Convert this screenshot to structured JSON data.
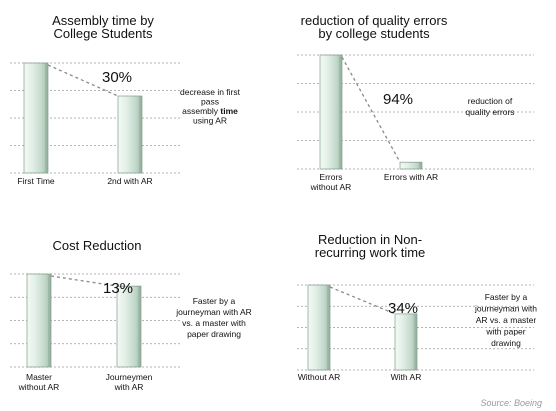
{
  "chart_data": [
    {
      "type": "bar",
      "title_lines": [
        "Assembly time by",
        "College Students"
      ],
      "categories": [
        [
          "First Time"
        ],
        [
          "2nd with AR"
        ]
      ],
      "values": [
        100,
        70
      ],
      "ylim": [
        0,
        100
      ],
      "grid": true,
      "percent_label": "30%",
      "annotation_lines": [
        [
          {
            "t": "decrease in first"
          }
        ],
        [
          {
            "t": "pass"
          }
        ],
        [
          {
            "t": "assembly "
          },
          {
            "t": "time",
            "bold": true
          }
        ],
        [
          {
            "t": "using AR"
          }
        ]
      ]
    },
    {
      "type": "bar",
      "title_lines": [
        "reduction of quality errors",
        "by college students"
      ],
      "categories": [
        [
          "Errors",
          "without AR"
        ],
        [
          "Errors with AR"
        ]
      ],
      "values": [
        100,
        6
      ],
      "ylim": [
        0,
        100
      ],
      "grid": true,
      "percent_label": "94%",
      "annotation_lines": [
        [
          {
            "t": "reduction of"
          }
        ],
        [
          {
            "t": "quality errors"
          }
        ]
      ]
    },
    {
      "type": "bar",
      "title_lines": [
        "Cost Reduction"
      ],
      "categories": [
        [
          "Master",
          "without AR"
        ],
        [
          "Journeymen",
          "with AR"
        ]
      ],
      "values": [
        100,
        87
      ],
      "ylim": [
        0,
        100
      ],
      "grid": true,
      "percent_label": "13%",
      "annotation_lines": [
        [
          {
            "t": "Faster by a"
          }
        ],
        [
          {
            "t": "journeyman with AR"
          }
        ],
        [
          {
            "t": "vs. a master with"
          }
        ],
        [
          {
            "t": "paper drawing"
          }
        ]
      ]
    },
    {
      "type": "bar",
      "title_lines": [
        "Reduction in Non-",
        "recurring work time"
      ],
      "categories": [
        [
          "Without AR"
        ],
        [
          "With AR"
        ]
      ],
      "values": [
        100,
        66
      ],
      "ylim": [
        0,
        100
      ],
      "grid": true,
      "percent_label": "34%",
      "annotation_lines": [
        [
          {
            "t": "Faster by a"
          }
        ],
        [
          {
            "t": "journeyman with"
          }
        ],
        [
          {
            "t": "AR vs. a master"
          }
        ],
        [
          {
            "t": "with paper"
          }
        ],
        [
          {
            "t": "drawing"
          }
        ]
      ]
    }
  ],
  "source": "Source: Boeing"
}
